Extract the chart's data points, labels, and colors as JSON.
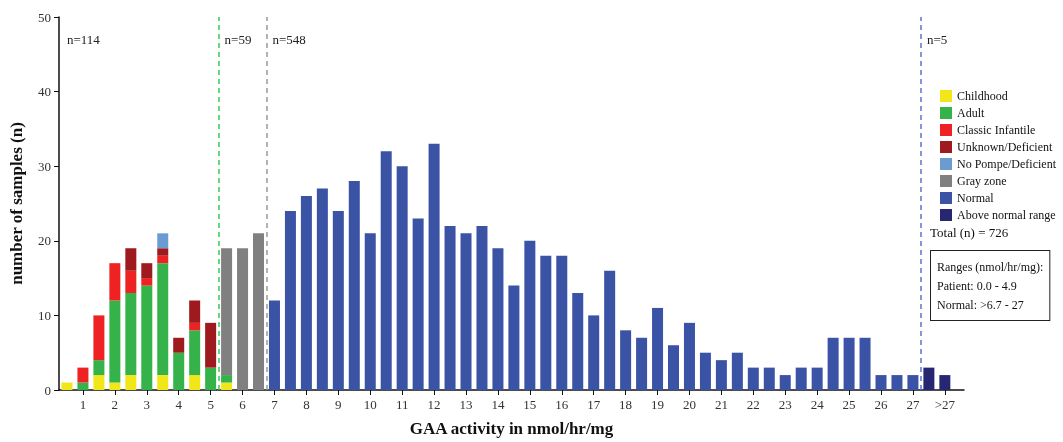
{
  "chart_data": {
    "type": "bar",
    "stacked": true,
    "xlabel": "GAA activity in nmol/hr/mg",
    "ylabel": "number of samples (n)",
    "x": [
      0.5,
      1,
      1.5,
      2,
      2.5,
      3,
      3.5,
      4,
      4.5,
      5,
      5.5,
      6,
      6.5,
      7,
      7.5,
      8,
      8.5,
      9,
      9.5,
      10,
      10.5,
      11,
      11.5,
      12,
      12.5,
      13,
      13.5,
      14,
      14.5,
      15,
      15.5,
      16,
      16.5,
      17,
      17.5,
      18,
      18.5,
      19,
      19.5,
      20,
      20.5,
      21,
      21.5,
      22,
      22.5,
      23,
      23.5,
      24,
      24.5,
      25,
      25.5,
      26,
      26.5,
      27,
      27.5,
      28
    ],
    "xlim": [
      0.25,
      28.6
    ],
    "xticks": [
      1,
      2,
      3,
      4,
      5,
      6,
      7,
      8,
      9,
      10,
      11,
      12,
      13,
      14,
      15,
      16,
      17,
      18,
      19,
      20,
      21,
      22,
      23,
      24,
      25,
      26,
      27,
      {
        "value": 28,
        "label": ">27"
      }
    ],
    "ylim": [
      0,
      50
    ],
    "yticks": [
      0,
      10,
      20,
      30,
      40,
      50
    ],
    "grid": false,
    "legend": "right",
    "series": [
      {
        "name": "Childhood",
        "color": "#f0e61a",
        "values": [
          1,
          null,
          2,
          1,
          2,
          null,
          2,
          null,
          2,
          null,
          1,
          null,
          null,
          null,
          null,
          null,
          null,
          null,
          null,
          null,
          null,
          null,
          null,
          null,
          null,
          null,
          null,
          null,
          null,
          null,
          null,
          null,
          null,
          null,
          null,
          null,
          null,
          null,
          null,
          null,
          null,
          null,
          null,
          null,
          null,
          null,
          null,
          null,
          null,
          null,
          null,
          null,
          null,
          null,
          null,
          null
        ]
      },
      {
        "name": "Adult",
        "color": "#35b24a",
        "values": [
          null,
          1,
          2,
          11,
          11,
          14,
          15,
          5,
          6,
          3,
          1,
          null,
          null,
          null,
          null,
          null,
          null,
          null,
          null,
          null,
          null,
          null,
          null,
          null,
          null,
          null,
          null,
          null,
          null,
          null,
          null,
          null,
          null,
          null,
          null,
          null,
          null,
          null,
          null,
          null,
          null,
          null,
          null,
          null,
          null,
          null,
          null,
          null,
          null,
          null,
          null,
          null,
          null,
          null,
          null,
          null
        ]
      },
      {
        "name": "Classic Infantile",
        "color": "#ee2222",
        "values": [
          null,
          2,
          6,
          5,
          3,
          1,
          1,
          null,
          1,
          null,
          null,
          null,
          null,
          null,
          null,
          null,
          null,
          null,
          null,
          null,
          null,
          null,
          null,
          null,
          null,
          null,
          null,
          null,
          null,
          null,
          null,
          null,
          null,
          null,
          null,
          null,
          null,
          null,
          null,
          null,
          null,
          null,
          null,
          null,
          null,
          null,
          null,
          null,
          null,
          null,
          null,
          null,
          null,
          null,
          null,
          null
        ]
      },
      {
        "name": "Unknown/Deficient",
        "color": "#9e1a1e",
        "values": [
          null,
          null,
          null,
          null,
          3,
          2,
          1,
          2,
          3,
          6,
          null,
          null,
          null,
          null,
          null,
          null,
          null,
          null,
          null,
          null,
          null,
          null,
          null,
          null,
          null,
          null,
          null,
          null,
          null,
          null,
          null,
          null,
          null,
          null,
          null,
          null,
          null,
          null,
          null,
          null,
          null,
          null,
          null,
          null,
          null,
          null,
          null,
          null,
          null,
          null,
          null,
          null,
          null,
          null,
          null,
          null
        ]
      },
      {
        "name": "No Pompe/Deficient",
        "color": "#6a9bd1",
        "values": [
          null,
          null,
          null,
          null,
          null,
          null,
          2,
          null,
          null,
          null,
          null,
          null,
          null,
          null,
          null,
          null,
          null,
          null,
          null,
          null,
          null,
          null,
          null,
          null,
          null,
          null,
          null,
          null,
          null,
          null,
          null,
          null,
          null,
          null,
          null,
          null,
          null,
          null,
          null,
          null,
          null,
          null,
          null,
          null,
          null,
          null,
          null,
          null,
          null,
          null,
          null,
          null,
          null,
          null,
          null,
          null
        ]
      },
      {
        "name": "Gray zone",
        "color": "#808080",
        "values": [
          null,
          null,
          null,
          null,
          null,
          null,
          null,
          null,
          null,
          null,
          17,
          19,
          21,
          null,
          null,
          null,
          null,
          null,
          null,
          null,
          null,
          null,
          null,
          null,
          null,
          null,
          null,
          null,
          null,
          null,
          null,
          null,
          null,
          null,
          null,
          null,
          null,
          null,
          null,
          null,
          null,
          null,
          null,
          null,
          null,
          null,
          null,
          null,
          null,
          null,
          null,
          null,
          null,
          null,
          null,
          null
        ]
      },
      {
        "name": "Normal",
        "color": "#3a53a4",
        "values": [
          null,
          null,
          null,
          null,
          null,
          null,
          null,
          null,
          null,
          null,
          null,
          null,
          null,
          12,
          24,
          26,
          27,
          24,
          28,
          21,
          32,
          30,
          23,
          33,
          22,
          21,
          22,
          19,
          14,
          20,
          18,
          18,
          13,
          10,
          16,
          8,
          7,
          11,
          6,
          9,
          5,
          4,
          5,
          3,
          3,
          2,
          3,
          3,
          7,
          7,
          7,
          2,
          2,
          2,
          null,
          null
        ]
      },
      {
        "name": "Above normal range",
        "color": "#262673",
        "values": [
          null,
          null,
          null,
          null,
          null,
          null,
          null,
          null,
          null,
          null,
          null,
          null,
          null,
          null,
          null,
          null,
          null,
          null,
          null,
          null,
          null,
          null,
          null,
          null,
          null,
          null,
          null,
          null,
          null,
          null,
          null,
          null,
          null,
          null,
          null,
          null,
          null,
          null,
          null,
          null,
          null,
          null,
          null,
          null,
          null,
          null,
          null,
          null,
          null,
          null,
          null,
          null,
          null,
          null,
          3,
          2
        ]
      }
    ],
    "ref_lines": [
      {
        "axis": "x",
        "value": 5.25,
        "color": "#33cc55",
        "line_style": "dashed"
      },
      {
        "axis": "x",
        "value": 6.75,
        "color": "#999999",
        "line_style": "dashed"
      },
      {
        "axis": "x",
        "value": 27.25,
        "color": "#5a76c8",
        "line_style": "dashed"
      }
    ],
    "annotations": [
      "n=114",
      {
        "text": "n=59",
        "x": 5.25,
        "y": 47
      },
      {
        "text": "n=548",
        "x": 6.75,
        "y": 47
      },
      {
        "text": "n=5",
        "x": 27.25,
        "y": 47
      },
      "Total (n) = 726",
      "Ranges (nmol/hr/mg):\nPatient: 0.0 - 4.9\nNormal: >6.7 - 27"
    ]
  }
}
